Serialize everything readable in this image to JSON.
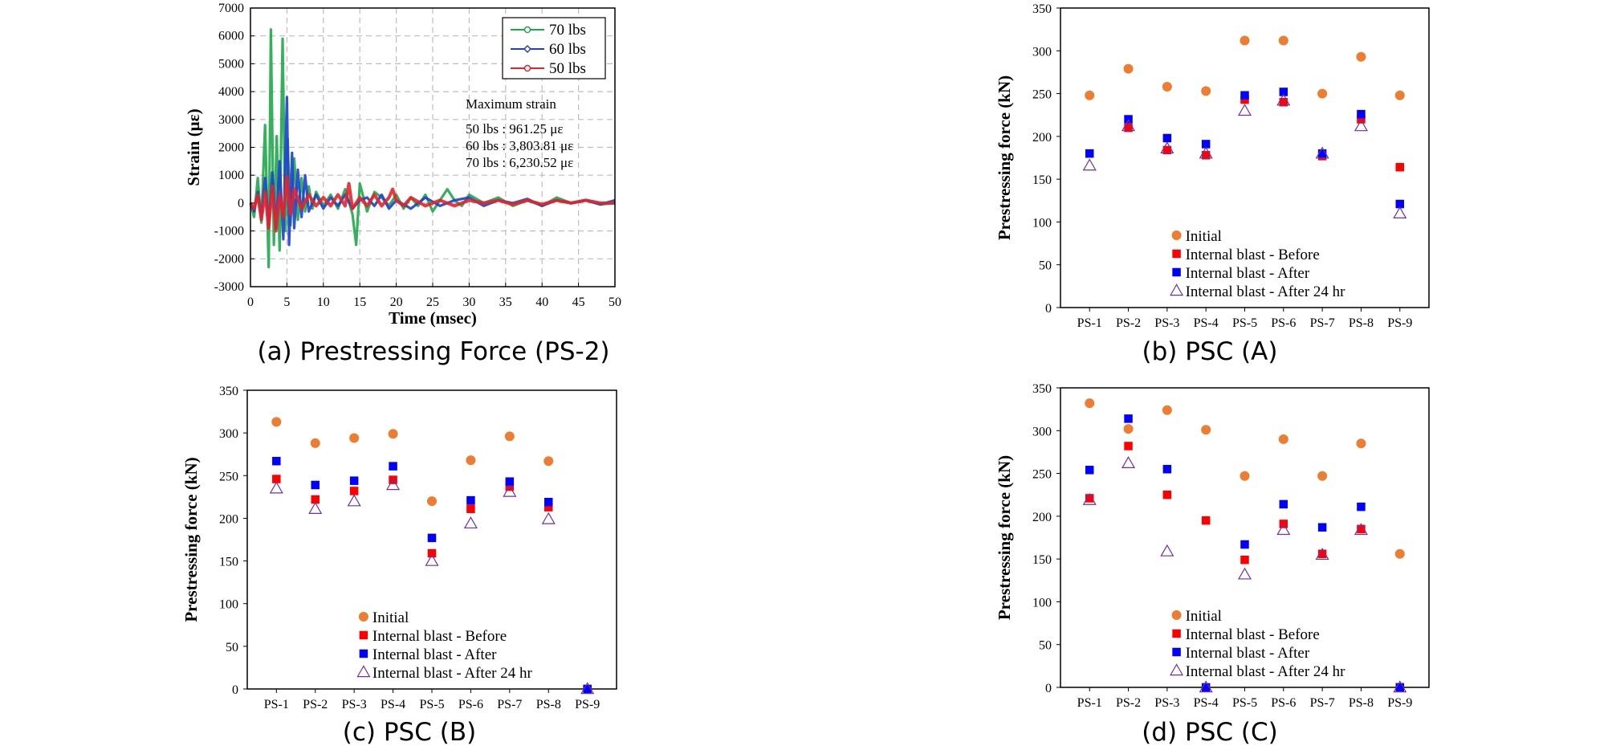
{
  "figure": {
    "captions": [
      "(a) Prestressing Force (PS-2)",
      "(b) PSC (A)",
      "(c) PSC (B)",
      "(d) PSC (C)"
    ]
  },
  "chart_data": [
    {
      "id": "a",
      "type": "line",
      "title": "(a) Prestressing Force (PS-2)",
      "xlabel": "Time (msec)",
      "ylabel": "Strain (με)",
      "xlim": [
        0,
        50
      ],
      "ylim": [
        -3000,
        7000
      ],
      "xticks": [
        0,
        5,
        10,
        15,
        20,
        25,
        30,
        35,
        40,
        45,
        50
      ],
      "yticks": [
        -3000,
        -2000,
        -1000,
        0,
        1000,
        2000,
        3000,
        4000,
        5000,
        6000,
        7000
      ],
      "grid": true,
      "legend_position": "top-right",
      "annotation_title": "Maximum strain",
      "annotation_lines": [
        "50 lbs : 961.25 με",
        "60 lbs : 3,803.81 με",
        "70 lbs : 6,230.52 με"
      ],
      "series": [
        {
          "name": "70 lbs",
          "color": "#1fa74a",
          "marker": "circle",
          "x": [
            0,
            0.5,
            1,
            1.5,
            2,
            2.5,
            2.8,
            3.2,
            3.6,
            4,
            4.4,
            4.8,
            5.1,
            5.5,
            6,
            6.5,
            7,
            7.5,
            8,
            8.5,
            9,
            10,
            11,
            12,
            13,
            14,
            14.5,
            15,
            16,
            17,
            18,
            19,
            20,
            21,
            22,
            23,
            24,
            25,
            26,
            27,
            28,
            29,
            30,
            32,
            34,
            36,
            38,
            40,
            42,
            44,
            46,
            48,
            50
          ],
          "y": [
            0,
            -500,
            900,
            -700,
            2800,
            -2300,
            6230,
            -1500,
            2400,
            -1700,
            5900,
            -1000,
            2300,
            -800,
            1600,
            -600,
            900,
            -300,
            600,
            -200,
            400,
            -100,
            300,
            -200,
            500,
            -400,
            -1500,
            700,
            -300,
            400,
            200,
            -100,
            300,
            -200,
            200,
            -100,
            300,
            -300,
            100,
            500,
            100,
            -100,
            300,
            0,
            200,
            -100,
            100,
            -100,
            200,
            0,
            100,
            -50,
            0
          ]
        },
        {
          "name": "60 lbs",
          "color": "#1f3fd0",
          "marker": "diamond",
          "x": [
            0,
            0.5,
            1,
            1.5,
            2,
            2.5,
            3,
            3.5,
            4,
            4.5,
            5,
            5.3,
            5.7,
            6,
            6.5,
            7,
            7.5,
            8,
            9,
            10,
            11,
            12,
            13,
            14,
            15,
            16,
            17,
            18,
            19,
            20,
            22,
            24,
            26,
            28,
            30,
            32,
            34,
            36,
            38,
            40,
            42,
            44,
            46,
            48,
            50
          ],
          "y": [
            0,
            -300,
            400,
            -500,
            900,
            -800,
            1100,
            -900,
            1500,
            -1300,
            3800,
            -1500,
            1800,
            -900,
            1200,
            -500,
            1000,
            -300,
            300,
            -200,
            200,
            -100,
            300,
            -200,
            100,
            200,
            -100,
            300,
            -200,
            100,
            -200,
            200,
            -100,
            100,
            200,
            -100,
            100,
            0,
            150,
            -100,
            100,
            0,
            100,
            -50,
            100
          ]
        },
        {
          "name": "50 lbs",
          "color": "#e3242b",
          "marker": "circle",
          "x": [
            0,
            0.5,
            1,
            1.5,
            2,
            2.5,
            3,
            3.5,
            4,
            4.5,
            5,
            5.5,
            6,
            7,
            8,
            9,
            10,
            11,
            12,
            13,
            13.5,
            14,
            15,
            16,
            17,
            18,
            19,
            19.5,
            20,
            21,
            22,
            24,
            26,
            28,
            30,
            32,
            34,
            36,
            38,
            40,
            42,
            44,
            46,
            48,
            50
          ],
          "y": [
            0,
            -200,
            300,
            -600,
            400,
            -900,
            600,
            -1000,
            300,
            -500,
            960,
            -400,
            500,
            -200,
            300,
            -100,
            200,
            -100,
            300,
            -100,
            700,
            -200,
            200,
            -100,
            300,
            -100,
            200,
            500,
            100,
            -100,
            200,
            -100,
            100,
            -100,
            100,
            0,
            100,
            -50,
            100,
            -50,
            100,
            0,
            100,
            0,
            0
          ]
        }
      ]
    },
    {
      "id": "b",
      "type": "scatter",
      "title": "(b) PSC (A)",
      "xlabel": "",
      "ylabel": "Prestressing force (kN)",
      "ylim": [
        0,
        350
      ],
      "yticks": [
        0,
        50,
        100,
        150,
        200,
        250,
        300,
        350
      ],
      "grid": false,
      "legend_position": "bottom-right",
      "categories": [
        "PS-1",
        "PS-2",
        "PS-3",
        "PS-4",
        "PS-5",
        "PS-6",
        "PS-7",
        "PS-8",
        "PS-9"
      ],
      "series": [
        {
          "name": "Initial",
          "marker": "circle",
          "color": "#ed7d31",
          "values": [
            248,
            279,
            258,
            253,
            312,
            312,
            250,
            293,
            248
          ]
        },
        {
          "name": "Internal blast - Before",
          "marker": "square",
          "color": "#ff0000",
          "values": [
            180,
            210,
            184,
            178,
            243,
            240,
            177,
            220,
            164
          ]
        },
        {
          "name": "Internal blast - After",
          "marker": "square",
          "color": "#0000ff",
          "values": [
            180,
            220,
            198,
            191,
            248,
            252,
            180,
            226,
            121
          ]
        },
        {
          "name": "Internal blast - After 24 hr",
          "marker": "triangle",
          "color": "#7030a0",
          "values": [
            166,
            212,
            186,
            180,
            230,
            242,
            180,
            212,
            110
          ]
        }
      ]
    },
    {
      "id": "c",
      "type": "scatter",
      "title": "(c) PSC (B)",
      "xlabel": "",
      "ylabel": "Prestressing force (kN)",
      "ylim": [
        0,
        350
      ],
      "yticks": [
        0,
        50,
        100,
        150,
        200,
        250,
        300,
        350
      ],
      "grid": false,
      "legend_position": "bottom-right",
      "categories": [
        "PS-1",
        "PS-2",
        "PS-3",
        "PS-4",
        "PS-5",
        "PS-6",
        "PS-7",
        "PS-8",
        "PS-9"
      ],
      "series": [
        {
          "name": "Initial",
          "marker": "circle",
          "color": "#ed7d31",
          "values": [
            313,
            288,
            294,
            299,
            220,
            268,
            296,
            267,
            null
          ]
        },
        {
          "name": "Internal blast - Before",
          "marker": "square",
          "color": "#ff0000",
          "values": [
            246,
            222,
            232,
            245,
            159,
            211,
            237,
            213,
            0
          ]
        },
        {
          "name": "Internal blast - After",
          "marker": "square",
          "color": "#0000ff",
          "values": [
            267,
            239,
            244,
            261,
            177,
            221,
            243,
            219,
            0
          ]
        },
        {
          "name": "Internal blast - After 24 hr",
          "marker": "triangle",
          "color": "#7030a0",
          "values": [
            235,
            211,
            220,
            239,
            150,
            194,
            231,
            199,
            0
          ]
        }
      ]
    },
    {
      "id": "d",
      "type": "scatter",
      "title": "(d) PSC (C)",
      "xlabel": "",
      "ylabel": "Prestressing force (kN)",
      "ylim": [
        0,
        350
      ],
      "yticks": [
        0,
        50,
        100,
        150,
        200,
        250,
        300,
        350
      ],
      "grid": false,
      "legend_position": "bottom-right",
      "categories": [
        "PS-1",
        "PS-2",
        "PS-3",
        "PS-4",
        "PS-5",
        "PS-6",
        "PS-7",
        "PS-8",
        "PS-9"
      ],
      "series": [
        {
          "name": "Initial",
          "marker": "circle",
          "color": "#ed7d31",
          "values": [
            332,
            302,
            324,
            301,
            247,
            290,
            247,
            285,
            156
          ]
        },
        {
          "name": "Internal blast - Before",
          "marker": "square",
          "color": "#ff0000",
          "values": [
            221,
            282,
            225,
            195,
            149,
            191,
            156,
            185,
            0
          ]
        },
        {
          "name": "Internal blast - After",
          "marker": "square",
          "color": "#0000ff",
          "values": [
            254,
            314,
            255,
            0,
            167,
            214,
            187,
            211,
            0
          ]
        },
        {
          "name": "Internal blast - After 24 hr",
          "marker": "triangle",
          "color": "#7030a0",
          "values": [
            219,
            262,
            159,
            0,
            132,
            184,
            155,
            184,
            0
          ]
        }
      ]
    }
  ]
}
